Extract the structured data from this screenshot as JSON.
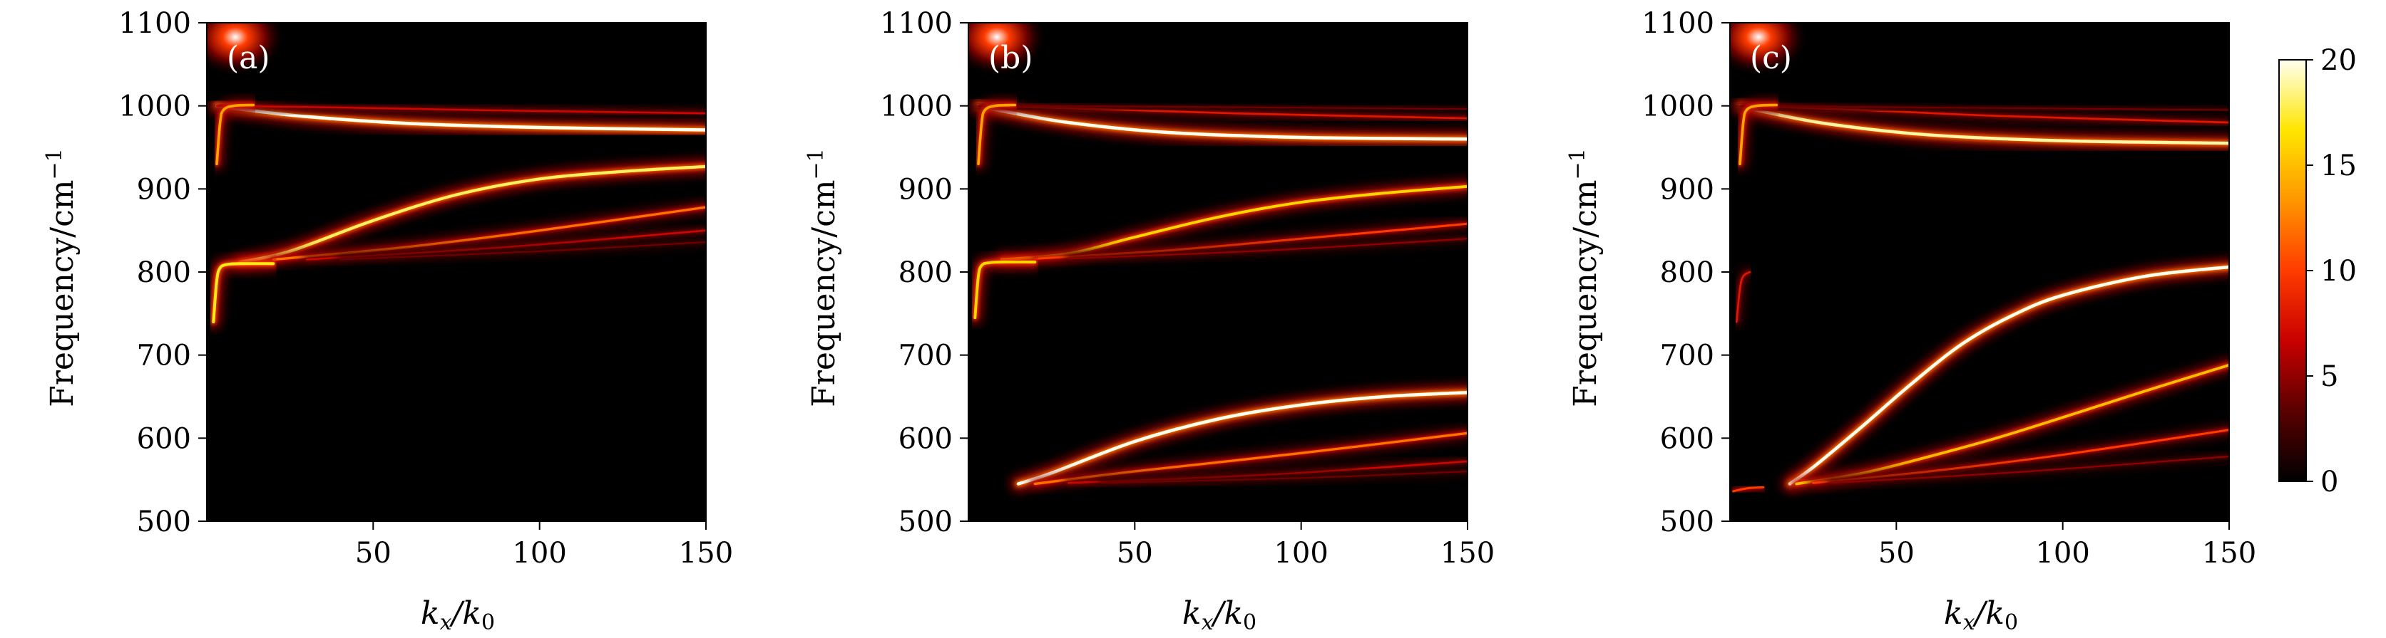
{
  "colorscale": {
    "colors": [
      "#000000",
      "#5a0000",
      "#c80000",
      "#ff3c00",
      "#ff9600",
      "#ffe600",
      "#fffff0"
    ],
    "ticks": [
      0,
      5,
      10,
      15,
      20
    ],
    "tick_labels": [
      "0",
      "5",
      "10",
      "15",
      "20"
    ],
    "range": [
      0,
      20
    ]
  },
  "chart_data": [
    {
      "type": "heatmap",
      "panel_label": "(a)",
      "xlabel_main": "k",
      "xlabel_sub1": "x",
      "xlabel_mid": "/k",
      "xlabel_sub2": "0",
      "ylabel_main": "Frequency/cm",
      "ylabel_sup": "−1",
      "xlim": [
        0,
        150
      ],
      "ylim": [
        500,
        1100
      ],
      "xticks": [
        50,
        100,
        150
      ],
      "xtick_labels": [
        "50",
        "100",
        "150"
      ],
      "yticks": [
        500,
        600,
        700,
        800,
        900,
        1000,
        1100
      ],
      "ytick_labels": [
        "500",
        "600",
        "700",
        "800",
        "900",
        "1000",
        "1100"
      ],
      "branches": [
        {
          "x": [
            3,
            10,
            30,
            60,
            100,
            150
          ],
          "y": [
            1000,
            996,
            987,
            979,
            974,
            971
          ],
          "intensity": 1.0
        },
        {
          "x": [
            3,
            40,
            80,
            150
          ],
          "y": [
            1000,
            998,
            995,
            991
          ],
          "intensity": 0.35
        },
        {
          "x": [
            10,
            25,
            50,
            75,
            100,
            125,
            150
          ],
          "y": [
            812,
            825,
            862,
            893,
            912,
            921,
            927
          ],
          "intensity": 0.9
        },
        {
          "x": [
            20,
            60,
            100,
            150
          ],
          "y": [
            815,
            830,
            850,
            878
          ],
          "intensity": 0.6
        },
        {
          "x": [
            30,
            90,
            150
          ],
          "y": [
            815,
            830,
            850
          ],
          "intensity": 0.35
        },
        {
          "x": [
            40,
            100,
            150
          ],
          "y": [
            815,
            825,
            836
          ],
          "intensity": 0.2
        },
        {
          "x": [
            2,
            3,
            4,
            6,
            10,
            20
          ],
          "y": [
            740,
            790,
            805,
            809,
            810,
            810
          ],
          "intensity": 0.85
        },
        {
          "x": [
            3,
            4,
            5,
            8,
            14
          ],
          "y": [
            930,
            980,
            995,
            1000,
            1001
          ],
          "intensity": 0.7
        }
      ]
    },
    {
      "type": "heatmap",
      "panel_label": "(b)",
      "xlabel_main": "k",
      "xlabel_sub1": "x",
      "xlabel_mid": "/k",
      "xlabel_sub2": "0",
      "ylabel_main": "Frequency/cm",
      "ylabel_sup": "−1",
      "xlim": [
        0,
        150
      ],
      "ylim": [
        500,
        1100
      ],
      "xticks": [
        50,
        100,
        150
      ],
      "xtick_labels": [
        "50",
        "100",
        "150"
      ],
      "yticks": [
        500,
        600,
        700,
        800,
        900,
        1000,
        1100
      ],
      "ytick_labels": [
        "500",
        "600",
        "700",
        "800",
        "900",
        "1000",
        "1100"
      ],
      "branches": [
        {
          "x": [
            3,
            10,
            30,
            60,
            100,
            150
          ],
          "y": [
            1000,
            994,
            980,
            968,
            962,
            960
          ],
          "intensity": 1.0
        },
        {
          "x": [
            3,
            40,
            80,
            150
          ],
          "y": [
            1000,
            996,
            991,
            985
          ],
          "intensity": 0.4
        },
        {
          "x": [
            3,
            60,
            150
          ],
          "y": [
            1000,
            999,
            996
          ],
          "intensity": 0.2
        },
        {
          "x": [
            10,
            30,
            50,
            75,
            100,
            125,
            150
          ],
          "y": [
            815,
            822,
            842,
            866,
            884,
            895,
            903
          ],
          "intensity": 0.8
        },
        {
          "x": [
            20,
            60,
            100,
            150
          ],
          "y": [
            816,
            826,
            840,
            858
          ],
          "intensity": 0.5
        },
        {
          "x": [
            30,
            90,
            150
          ],
          "y": [
            816,
            826,
            840
          ],
          "intensity": 0.25
        },
        {
          "x": [
            15,
            25,
            50,
            75,
            100,
            125,
            150
          ],
          "y": [
            545,
            558,
            596,
            623,
            640,
            650,
            655
          ],
          "intensity": 1.0
        },
        {
          "x": [
            20,
            50,
            100,
            150
          ],
          "y": [
            545,
            560,
            582,
            606
          ],
          "intensity": 0.6
        },
        {
          "x": [
            30,
            90,
            150
          ],
          "y": [
            546,
            556,
            572
          ],
          "intensity": 0.35
        },
        {
          "x": [
            40,
            100,
            150
          ],
          "y": [
            546,
            552,
            560
          ],
          "intensity": 0.2
        },
        {
          "x": [
            2,
            3,
            4,
            6,
            10,
            20
          ],
          "y": [
            745,
            795,
            808,
            811,
            812,
            812
          ],
          "intensity": 0.8
        },
        {
          "x": [
            3,
            4,
            5,
            8,
            14
          ],
          "y": [
            930,
            980,
            995,
            1000,
            1001
          ],
          "intensity": 0.7
        }
      ]
    },
    {
      "type": "heatmap",
      "panel_label": "(c)",
      "xlabel_main": "k",
      "xlabel_sub1": "x",
      "xlabel_mid": "/k",
      "xlabel_sub2": "0",
      "ylabel_main": "Frequency/cm",
      "ylabel_sup": "−1",
      "xlim": [
        0,
        150
      ],
      "ylim": [
        500,
        1100
      ],
      "xticks": [
        50,
        100,
        150
      ],
      "xtick_labels": [
        "50",
        "100",
        "150"
      ],
      "yticks": [
        500,
        600,
        700,
        800,
        900,
        1000,
        1100
      ],
      "ytick_labels": [
        "500",
        "600",
        "700",
        "800",
        "900",
        "1000",
        "1100"
      ],
      "branches": [
        {
          "x": [
            3,
            10,
            30,
            60,
            100,
            150
          ],
          "y": [
            1000,
            993,
            978,
            965,
            958,
            955
          ],
          "intensity": 0.95
        },
        {
          "x": [
            3,
            40,
            80,
            150
          ],
          "y": [
            1000,
            995,
            988,
            980
          ],
          "intensity": 0.4
        },
        {
          "x": [
            3,
            60,
            150
          ],
          "y": [
            1000,
            998,
            995
          ],
          "intensity": 0.2
        },
        {
          "x": [
            18,
            25,
            40,
            55,
            70,
            85,
            100,
            125,
            150
          ],
          "y": [
            545,
            565,
            615,
            667,
            714,
            748,
            772,
            795,
            806
          ],
          "intensity": 1.0
        },
        {
          "x": [
            20,
            40,
            60,
            80,
            100,
            125,
            150
          ],
          "y": [
            545,
            558,
            578,
            600,
            625,
            657,
            688
          ],
          "intensity": 0.75
        },
        {
          "x": [
            25,
            60,
            100,
            150
          ],
          "y": [
            546,
            560,
            580,
            610
          ],
          "intensity": 0.5
        },
        {
          "x": [
            30,
            90,
            150
          ],
          "y": [
            546,
            560,
            578
          ],
          "intensity": 0.25
        },
        {
          "x": [
            1,
            3,
            6,
            10
          ],
          "y": [
            536,
            538,
            540,
            541
          ],
          "intensity": 0.5
        },
        {
          "x": [
            2,
            3,
            4,
            6
          ],
          "y": [
            740,
            780,
            795,
            800
          ],
          "intensity": 0.4
        },
        {
          "x": [
            3,
            4,
            5,
            8,
            14
          ],
          "y": [
            930,
            980,
            995,
            1000,
            1001
          ],
          "intensity": 0.7
        }
      ]
    }
  ]
}
